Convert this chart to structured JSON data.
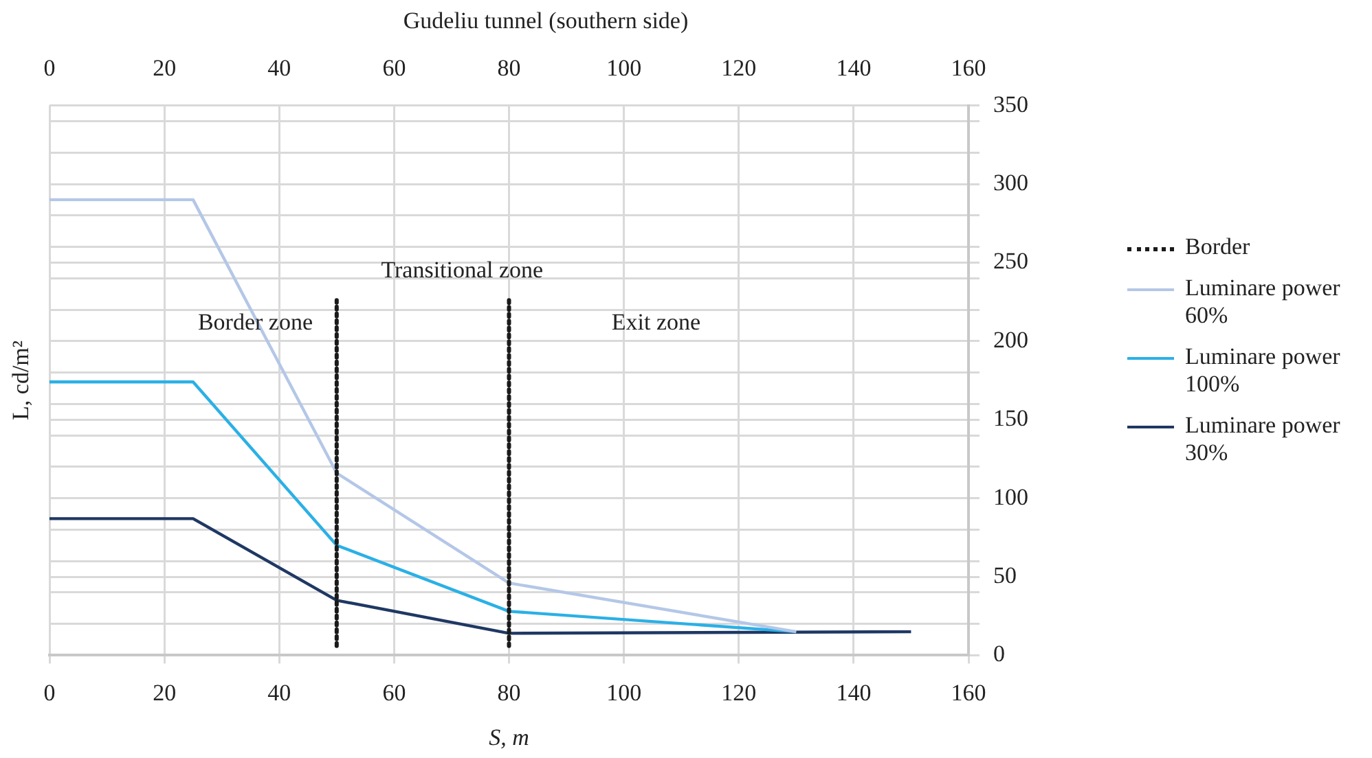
{
  "chart_data": {
    "type": "line",
    "title": "Gudeliu tunnel (southern side)",
    "xlabel": "S, m",
    "ylabel": "L, cd/m²",
    "xlim": [
      0,
      160
    ],
    "xticks": [
      0,
      20,
      40,
      60,
      80,
      100,
      120,
      140,
      160
    ],
    "x2lim": [
      0,
      160
    ],
    "x2ticks": [
      0,
      20,
      40,
      60,
      80,
      100,
      120,
      140,
      160
    ],
    "ylim": [
      0,
      350
    ],
    "yticks": [
      0,
      {
        "value": 20,
        "label": null
      },
      {
        "value": 40,
        "label": null
      },
      50,
      {
        "value": 60,
        "label": null
      },
      {
        "value": 80,
        "label": null
      },
      100,
      {
        "value": 120,
        "label": null
      },
      {
        "value": 140,
        "label": null
      },
      150,
      {
        "value": 160,
        "label": null
      },
      {
        "value": 180,
        "label": null
      },
      200,
      {
        "value": 220,
        "label": null
      },
      {
        "value": 240,
        "label": null
      },
      250,
      {
        "value": 260,
        "label": null
      },
      {
        "value": 280,
        "label": null
      },
      300,
      {
        "value": 320,
        "label": null
      },
      {
        "value": 340,
        "label": null
      },
      350
    ],
    "grid": true,
    "legend": "right",
    "marker": "none",
    "series": [
      {
        "name": "Border",
        "line_style": "dotted",
        "color": "#1a1a1a",
        "x": [
          50,
          50,
          65,
          80,
          80
        ],
        "values": [
          6,
          226,
          null,
          226,
          6
        ]
      },
      {
        "name": "Luminare power 60%",
        "color": "#b4c7e7",
        "x": [
          0,
          25,
          50,
          80,
          130
        ],
        "values": [
          290,
          290,
          116,
          46,
          15
        ]
      },
      {
        "name": "Luminare power 100%",
        "color": "#2bb0e6",
        "x": [
          0,
          25,
          50,
          80,
          130
        ],
        "values": [
          174,
          174,
          70,
          28,
          15
        ]
      },
      {
        "name": "Luminare power 30%",
        "color": "#1f3864",
        "x": [
          0,
          25,
          50,
          80,
          150
        ],
        "values": [
          87,
          87,
          35,
          14,
          15
        ]
      }
    ],
    "annotations": [
      "Border zone",
      "Transitional zone",
      "Exit zone"
    ]
  }
}
